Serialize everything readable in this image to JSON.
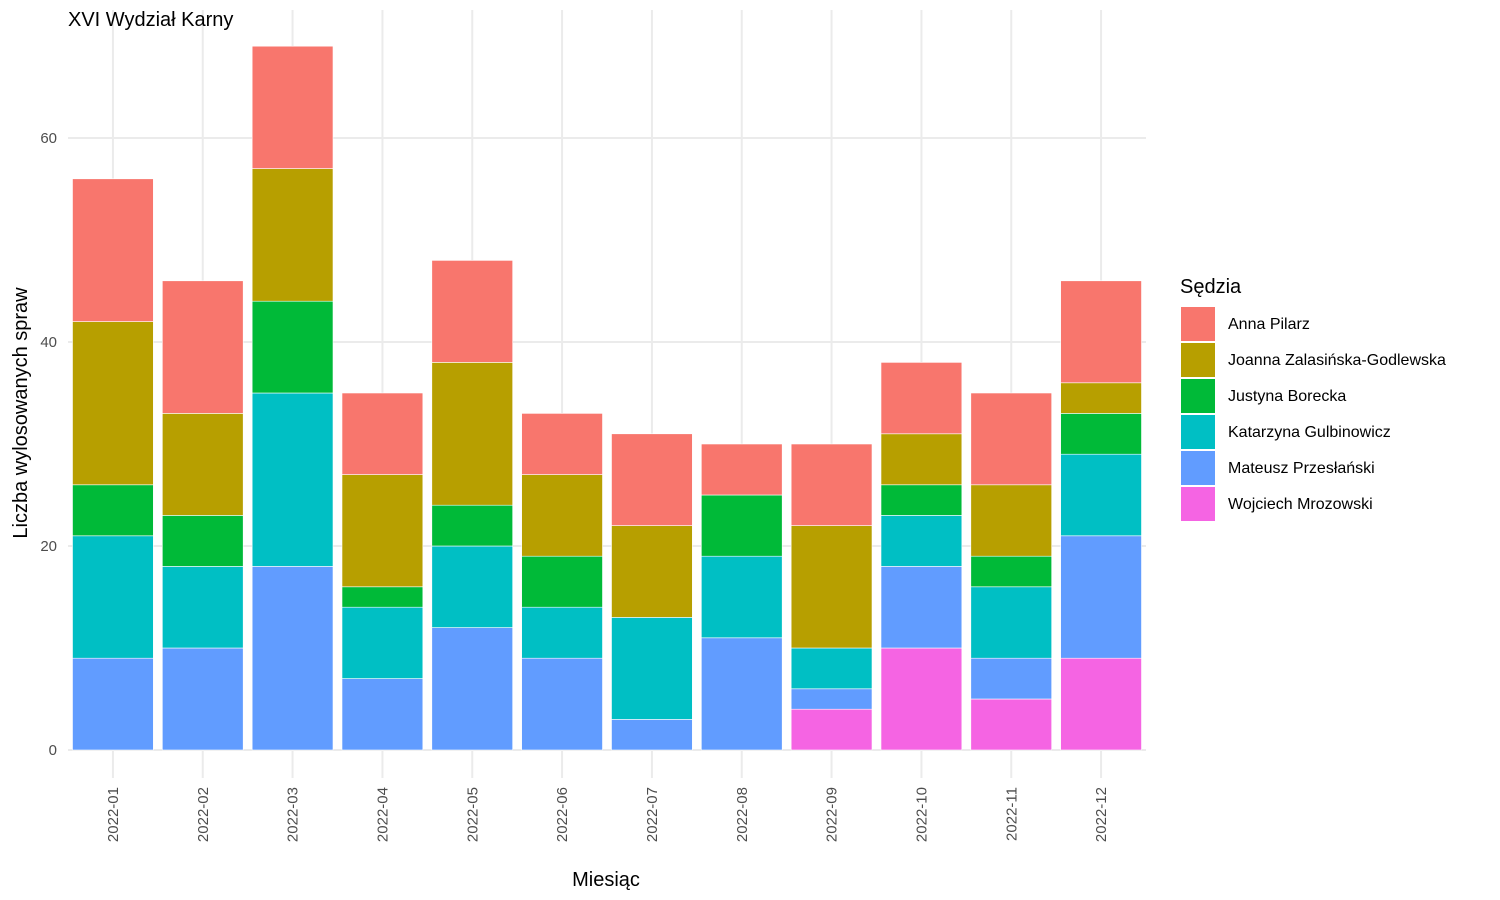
{
  "chart_data": {
    "type": "bar",
    "stacked": true,
    "title": "XVI Wydział Karny",
    "xlabel": "Miesiąc",
    "ylabel": "Liczba wylosowanych spraw",
    "ylim": [
      0,
      70
    ],
    "yticks": [
      0,
      20,
      40,
      60
    ],
    "grid": true,
    "legend_position": "right",
    "legend_title": "Sędzia",
    "categories": [
      "2022-01",
      "2022-02",
      "2022-03",
      "2022-04",
      "2022-05",
      "2022-06",
      "2022-07",
      "2022-08",
      "2022-09",
      "2022-10",
      "2022-11",
      "2022-12"
    ],
    "series": [
      {
        "name": "Anna Pilarz",
        "color": "#F8766D",
        "values": [
          14,
          13,
          12,
          8,
          10,
          6,
          9,
          5,
          8,
          7,
          9,
          10
        ]
      },
      {
        "name": "Joanna Zalasińska-Godlewska",
        "color": "#B79F00",
        "values": [
          16,
          10,
          13,
          11,
          14,
          8,
          9,
          0,
          12,
          5,
          7,
          3
        ]
      },
      {
        "name": "Justyna Borecka",
        "color": "#00BA38",
        "values": [
          5,
          5,
          9,
          2,
          4,
          5,
          0,
          6,
          0,
          3,
          3,
          4
        ]
      },
      {
        "name": "Katarzyna Gulbinowicz",
        "color": "#00BFC4",
        "values": [
          12,
          8,
          17,
          7,
          8,
          5,
          10,
          8,
          4,
          5,
          7,
          8
        ]
      },
      {
        "name": "Mateusz Przesłański",
        "color": "#619CFF",
        "values": [
          9,
          10,
          18,
          7,
          12,
          9,
          3,
          11,
          2,
          8,
          4,
          12
        ]
      },
      {
        "name": "Wojciech Mrozowski",
        "color": "#F564E3",
        "values": [
          0,
          0,
          0,
          0,
          0,
          0,
          0,
          0,
          4,
          10,
          5,
          9
        ]
      }
    ]
  }
}
